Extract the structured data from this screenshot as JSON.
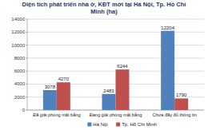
{
  "chart_data": {
    "type": "bar",
    "title": "Diện tích phát triển nhà ở, KĐT mới tại Hà Nội, Tp. Hồ Chí Minh (ha)",
    "categories": [
      "Đã giải phóng mặt bằng",
      "Đang giải phóng mặt bằng",
      "Chưa đầy đủ thông tin"
    ],
    "series": [
      {
        "name": "Hà Nội",
        "color": "#4f81bd",
        "values": [
          3078,
          2483,
          12204
        ]
      },
      {
        "name": "Tp. Hồ Chí Minh",
        "color": "#c0504d",
        "values": [
          4270,
          6244,
          1790
        ]
      }
    ],
    "ylim": [
      0,
      14000
    ],
    "yticks": [
      0,
      2000,
      4000,
      6000,
      8000,
      10000,
      12000,
      14000
    ],
    "grid": true,
    "data_labels": true,
    "legend": "bottom"
  }
}
